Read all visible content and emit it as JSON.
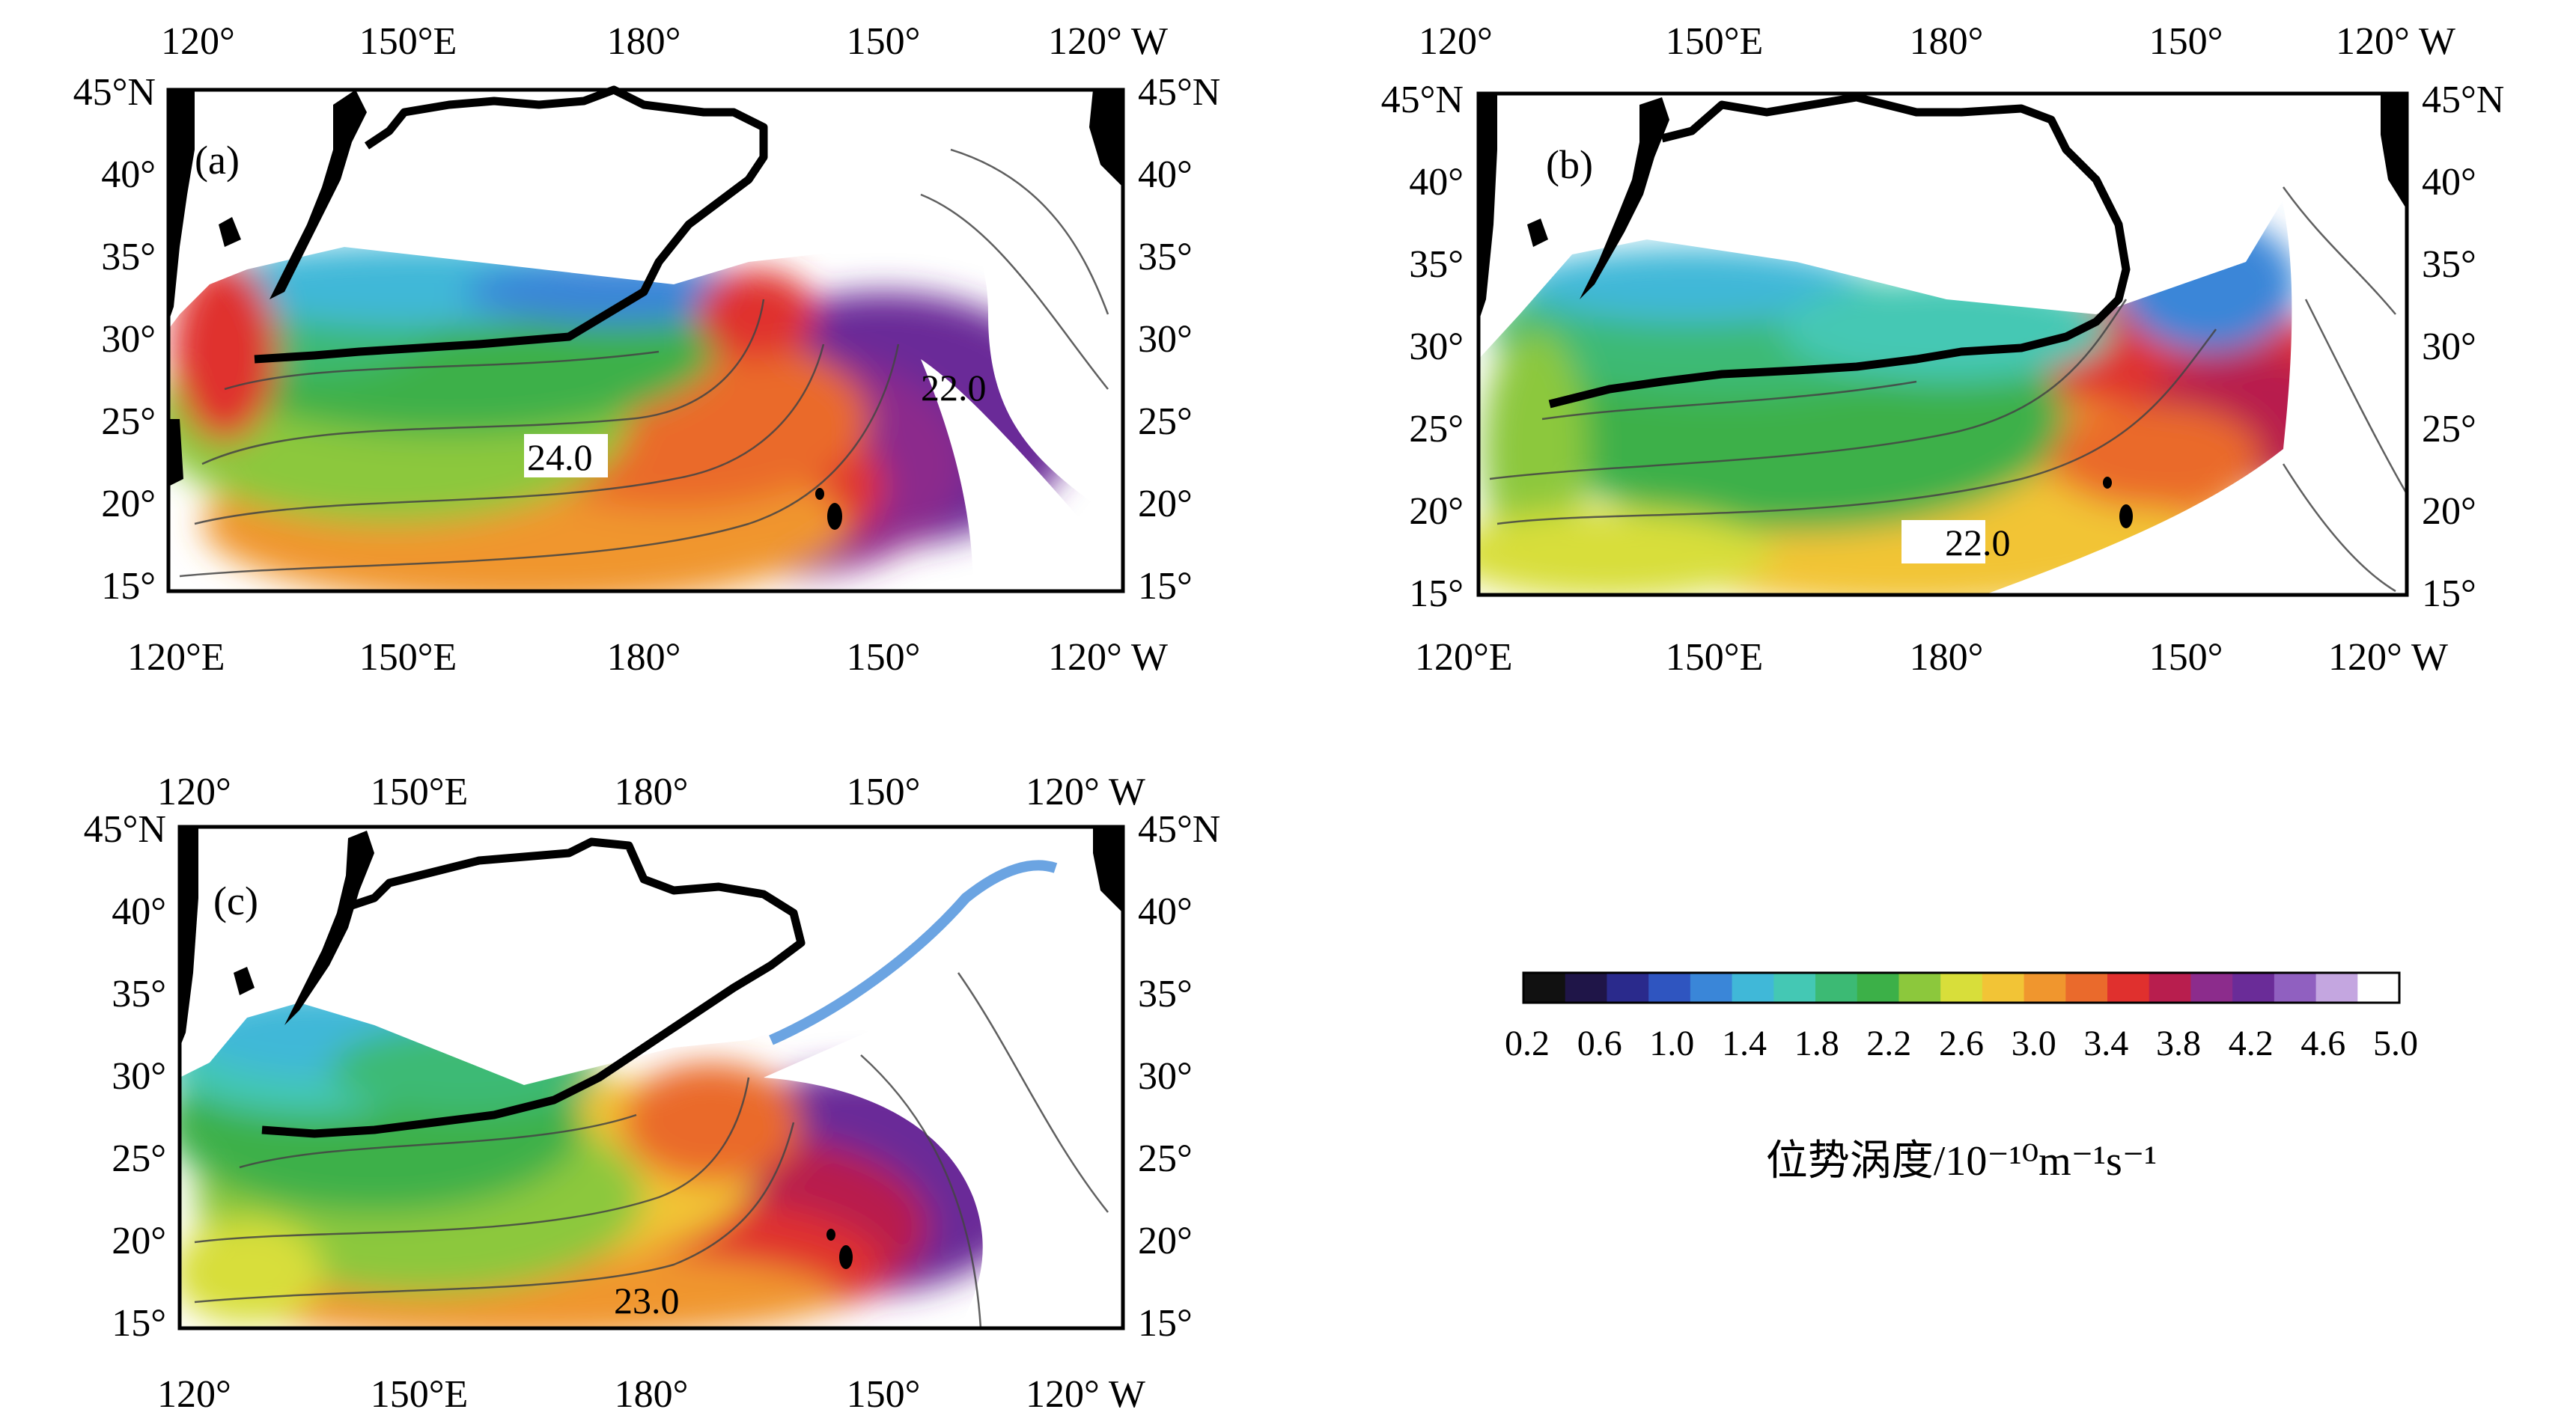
{
  "axes": {
    "top_x_ticks": [
      "120°",
      "150°E",
      "180°",
      "150°",
      "120° W"
    ],
    "bottom_x_ticks_a": [
      "120°E",
      "150°E",
      "180°",
      "150°",
      "120° W"
    ],
    "bottom_x_ticks_b": [
      "120°E",
      "150°E",
      "180°",
      "150°",
      "120° W"
    ],
    "bottom_x_ticks_c": [
      "120°",
      "150°E",
      "180°",
      "150°",
      "120° W"
    ],
    "y_ticks": [
      "45°N",
      "40°",
      "35°",
      "30°",
      "25°",
      "20°",
      "15°"
    ]
  },
  "panels": [
    {
      "id": "a",
      "label": "(a)",
      "contour_label": "24.0",
      "contour_label_2": "22.0"
    },
    {
      "id": "b",
      "label": "(b)",
      "contour_label": "22.0"
    },
    {
      "id": "c",
      "label": "(c)",
      "contour_label": "23.0"
    }
  ],
  "colorbar": {
    "tick_labels": [
      "0.2",
      "0.6",
      "1.0",
      "1.4",
      "1.8",
      "2.2",
      "2.6",
      "3.0",
      "3.4",
      "3.8",
      "4.2",
      "4.6",
      "5.0"
    ],
    "title": "位势涡度/10⁻¹⁰m⁻¹s⁻¹",
    "colors": [
      "#111111",
      "#1f1548",
      "#2a2a8c",
      "#2f55c0",
      "#3a86d8",
      "#40b8d8",
      "#44c8b4",
      "#3cba74",
      "#3cb048",
      "#8cc83c",
      "#d8de3a",
      "#f2c436",
      "#f0962e",
      "#ea6a2c",
      "#e0302e",
      "#b81e4e",
      "#8c2c8c",
      "#6a2c98",
      "#9060c0",
      "#c4a6e0",
      "#ffffff"
    ]
  }
}
